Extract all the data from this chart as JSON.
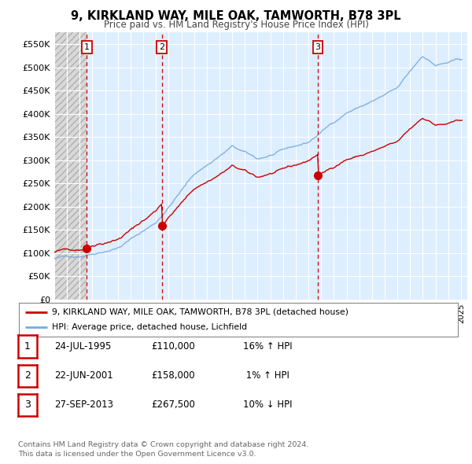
{
  "title_line1": "9, KIRKLAND WAY, MILE OAK, TAMWORTH, B78 3PL",
  "title_line2": "Price paid vs. HM Land Registry's House Price Index (HPI)",
  "ylim": [
    0,
    575000
  ],
  "yticks": [
    0,
    50000,
    100000,
    150000,
    200000,
    250000,
    300000,
    350000,
    400000,
    450000,
    500000,
    550000
  ],
  "ytick_labels": [
    "£0",
    "£50K",
    "£100K",
    "£150K",
    "£200K",
    "£250K",
    "£300K",
    "£350K",
    "£400K",
    "£450K",
    "£500K",
    "£550K"
  ],
  "xlim_start": 1993.0,
  "xlim_end": 2025.5,
  "sales": [
    {
      "date_num": 1995.56,
      "price": 110000,
      "label": "1"
    },
    {
      "date_num": 2001.47,
      "price": 158000,
      "label": "2"
    },
    {
      "date_num": 2013.74,
      "price": 267500,
      "label": "3"
    }
  ],
  "sale_line_color": "#cc0000",
  "hpi_line_color": "#7aaadd",
  "hatch_color": "#d0d0d0",
  "plot_bg_color": "#ddeeff",
  "grid_color": "#ffffff",
  "legend_entries": [
    "9, KIRKLAND WAY, MILE OAK, TAMWORTH, B78 3PL (detached house)",
    "HPI: Average price, detached house, Lichfield"
  ],
  "table_rows": [
    [
      "1",
      "24-JUL-1995",
      "£110,000",
      "16% ↑ HPI"
    ],
    [
      "2",
      "22-JUN-2001",
      "£158,000",
      " 1% ↑ HPI"
    ],
    [
      "3",
      "27-SEP-2013",
      "£267,500",
      "10% ↓ HPI"
    ]
  ],
  "footer": "Contains HM Land Registry data © Crown copyright and database right 2024.\nThis data is licensed under the Open Government Licence v3.0."
}
